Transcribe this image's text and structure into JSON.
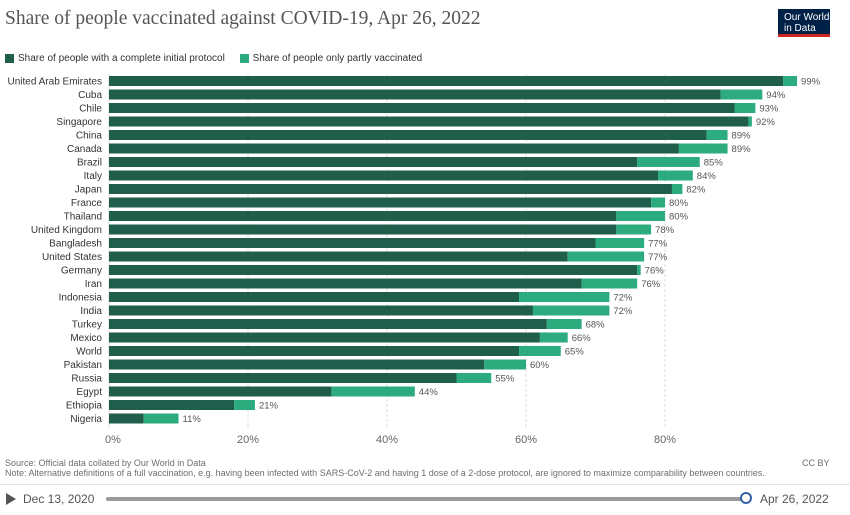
{
  "header": {
    "title": "Share of people vaccinated against COVID-19, Apr 26, 2022",
    "logo_line1": "Our World",
    "logo_line2": "in Data"
  },
  "colors": {
    "complete": "#1f5e4b",
    "partial": "#2bab7e"
  },
  "legend": {
    "complete_label": "Share of people with a complete initial protocol",
    "partial_label": "Share of people only partly vaccinated"
  },
  "chart_data": {
    "type": "bar",
    "orientation": "horizontal",
    "stacked": true,
    "title": "Share of people vaccinated against COVID-19, Apr 26, 2022",
    "xlim": [
      0,
      100
    ],
    "x_ticks": [
      "0%",
      "20%",
      "40%",
      "60%",
      "80%"
    ],
    "grid": true,
    "legend_placement": "top-left",
    "categories": [
      "United Arab Emirates",
      "Cuba",
      "Chile",
      "Singapore",
      "China",
      "Canada",
      "Brazil",
      "Italy",
      "Japan",
      "France",
      "Thailand",
      "United Kingdom",
      "Bangladesh",
      "United States",
      "Germany",
      "Iran",
      "Indonesia",
      "India",
      "Turkey",
      "Mexico",
      "World",
      "Pakistan",
      "Russia",
      "Egypt",
      "Ethiopia",
      "Nigeria"
    ],
    "series": [
      {
        "name": "Share of people with a complete initial protocol",
        "values": [
          97,
          88,
          90,
          92,
          86,
          82,
          76,
          79,
          81,
          78,
          73,
          73,
          70,
          66,
          76,
          68,
          59,
          61,
          63,
          62,
          59,
          54,
          50,
          32,
          18,
          5
        ]
      },
      {
        "name": "Share of people only partly vaccinated",
        "values": [
          2,
          6,
          3,
          0.5,
          3,
          7,
          9,
          5,
          1.5,
          2,
          7,
          5,
          7,
          11,
          0.5,
          8,
          13,
          11,
          5,
          4,
          6,
          6,
          5,
          12,
          3,
          5
        ]
      }
    ],
    "totals": [
      "99%",
      "94%",
      "93%",
      "92%",
      "89%",
      "89%",
      "85%",
      "84%",
      "82%",
      "80%",
      "80%",
      "78%",
      "77%",
      "77%",
      "76%",
      "76%",
      "72%",
      "72%",
      "68%",
      "66%",
      "65%",
      "60%",
      "55%",
      "44%",
      "21%",
      "11%"
    ]
  },
  "footer": {
    "source": "Source: Official data collated by Our World in Data",
    "note": "Note: Alternative definitions of a full vaccination, e.g. having been infected with SARS-CoV-2 and having 1 dose of a 2-dose protocol, are ignored to maximize comparability between countries.",
    "license": "CC BY"
  },
  "timeline": {
    "start_label": "Dec 13, 2020",
    "end_label": "Apr 26, 2022",
    "progress": 1.0
  }
}
